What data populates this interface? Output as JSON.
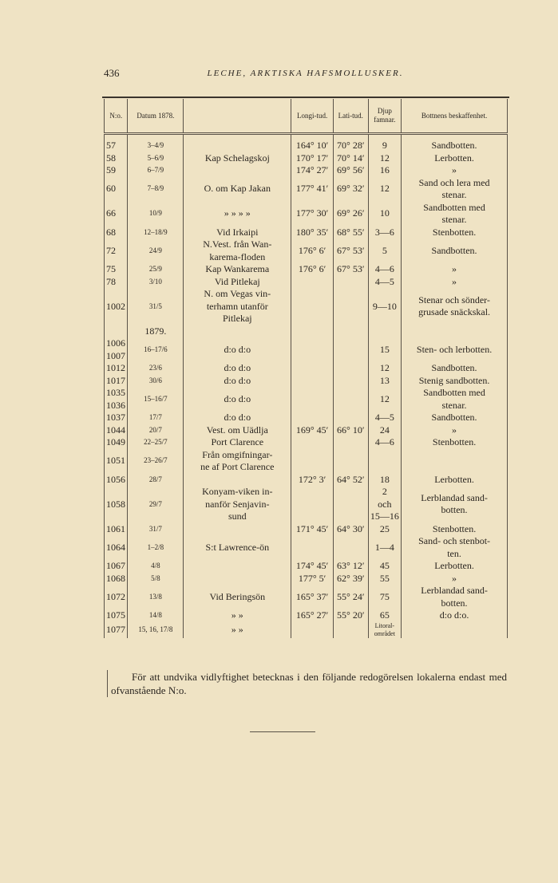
{
  "header": {
    "page_number": "436",
    "running_title": "LECHE, ARKTISKA HAFSMOLLUSKER."
  },
  "table": {
    "columns": [
      "N:o.",
      "Datum 1878.",
      "",
      "Longi-tud.",
      "Lati-tud.",
      "Djup famnar.",
      "Bottnens beskaffenhet."
    ],
    "rows": [
      {
        "no": [
          "57"
        ],
        "date": "3–4/9",
        "loc": [
          ""
        ],
        "long": "164° 10′",
        "lat": "70° 28′",
        "depth": [
          "9"
        ],
        "bottom": [
          "Sandbotten."
        ]
      },
      {
        "no": [
          "58"
        ],
        "date": "5–6/9",
        "loc": [
          "Kap Schelagskoj"
        ],
        "long": "170° 17′",
        "lat": "70° 14′",
        "depth": [
          "12"
        ],
        "bottom": [
          "Lerbotten."
        ]
      },
      {
        "no": [
          "59"
        ],
        "date": "6–7/9",
        "loc": [
          ""
        ],
        "long": "174° 27′",
        "lat": "69° 56′",
        "depth": [
          "16"
        ],
        "bottom": [
          "»"
        ]
      },
      {
        "no": [
          "60"
        ],
        "date": "7–8/9",
        "loc": [
          "O. om Kap Jakan"
        ],
        "long": "177° 41′",
        "lat": "69° 32′",
        "depth": [
          "12"
        ],
        "bottom": [
          "Sand och lera med",
          "stenar."
        ]
      },
      {
        "no": [
          "66"
        ],
        "date": "10/9",
        "loc": [
          "»   »   »   »"
        ],
        "long": "177° 30′",
        "lat": "69° 26′",
        "depth": [
          "10"
        ],
        "bottom": [
          "Sandbotten med",
          "stenar."
        ]
      },
      {
        "no": [
          "68"
        ],
        "date": "12–18/9",
        "loc": [
          "Vid Irkaipi"
        ],
        "long": "180° 35′",
        "lat": "68° 55′",
        "depth": [
          "3—6"
        ],
        "bottom": [
          "Stenbotten."
        ]
      },
      {
        "no": [
          "72"
        ],
        "date": "24/9",
        "loc": [
          "N.Vest. från Wan-",
          "karema-floden"
        ],
        "long": "176° 6′",
        "lat": "67° 53′",
        "depth": [
          "5"
        ],
        "bottom": [
          "Sandbotten."
        ]
      },
      {
        "no": [
          "75"
        ],
        "date": "25/9",
        "loc": [
          "Kap Wankarema"
        ],
        "long": "176° 6′",
        "lat": "67° 53′",
        "depth": [
          "4—6"
        ],
        "bottom": [
          "»"
        ]
      },
      {
        "no": [
          "78"
        ],
        "date": "3/10",
        "loc": [
          "Vid Pitlekaj"
        ],
        "long": "",
        "lat": "",
        "depth": [
          "4—5"
        ],
        "bottom": [
          "»"
        ]
      },
      {
        "no": [
          "1002"
        ],
        "date": "31/5",
        "loc": [
          "N. om Vegas vin-",
          "terhamn utanför",
          "Pitlekaj"
        ],
        "long": "",
        "lat": "",
        "depth": [
          "9—10"
        ],
        "bottom": [
          "Stenar och sönder-",
          "grusade snäckskal."
        ]
      },
      {
        "no": [
          ""
        ],
        "date": "1879.",
        "loc": [
          ""
        ],
        "long": "",
        "lat": "",
        "depth": [
          ""
        ],
        "bottom": [
          ""
        ]
      },
      {
        "no": [
          "1006",
          "1007"
        ],
        "date": "16–17/6",
        "loc": [
          "d:o    d:o"
        ],
        "long": "",
        "lat": "",
        "depth": [
          "15"
        ],
        "bottom": [
          "Sten- och lerbotten."
        ]
      },
      {
        "no": [
          "1012"
        ],
        "date": "23/6",
        "loc": [
          "d:o    d:o"
        ],
        "long": "",
        "lat": "",
        "depth": [
          "12"
        ],
        "bottom": [
          "Sandbotten."
        ]
      },
      {
        "no": [
          "1017"
        ],
        "date": "30/6",
        "loc": [
          "d:o    d:o"
        ],
        "long": "",
        "lat": "",
        "depth": [
          "13"
        ],
        "bottom": [
          "Stenig sandbotten."
        ]
      },
      {
        "no": [
          "1035",
          "1036"
        ],
        "date": "15–16/7",
        "loc": [
          "d:o    d:o"
        ],
        "long": "",
        "lat": "",
        "depth": [
          "12"
        ],
        "bottom": [
          "Sandbotten med",
          "stenar."
        ]
      },
      {
        "no": [
          "1037"
        ],
        "date": "17/7",
        "loc": [
          "d:o    d:o"
        ],
        "long": "",
        "lat": "",
        "depth": [
          "4—5"
        ],
        "bottom": [
          "Sandbotten."
        ]
      },
      {
        "no": [
          "1044"
        ],
        "date": "20/7",
        "loc": [
          "Vest. om Uädlja"
        ],
        "long": "169° 45′",
        "lat": "66° 10′",
        "depth": [
          "24"
        ],
        "bottom": [
          "»"
        ]
      },
      {
        "no": [
          "1049"
        ],
        "date": "22–25/7",
        "loc": [
          "Port Clarence"
        ],
        "long": "",
        "lat": "",
        "depth": [
          "4—6"
        ],
        "bottom": [
          "Stenbotten."
        ]
      },
      {
        "no": [
          "1051"
        ],
        "date": "23–26/7",
        "loc": [
          "Från omgifningar-",
          "ne af Port Clarence"
        ],
        "long": "",
        "lat": "",
        "depth": [
          ""
        ],
        "bottom": [
          ""
        ]
      },
      {
        "no": [
          "1056"
        ],
        "date": "28/7",
        "loc": [
          ""
        ],
        "long": "172° 3′",
        "lat": "64° 52′",
        "depth": [
          "18"
        ],
        "bottom": [
          "Lerbotten."
        ]
      },
      {
        "no": [
          "1058"
        ],
        "date": "29/7",
        "loc": [
          "Konyam-viken in-",
          "nanför Senjavin-",
          "sund"
        ],
        "long": "",
        "lat": "",
        "depth": [
          "2",
          "och",
          "15—16"
        ],
        "bottom": [
          "Lerblandad sand-",
          "botten."
        ]
      },
      {
        "no": [
          "1061"
        ],
        "date": "31/7",
        "loc": [
          ""
        ],
        "long": "171° 45′",
        "lat": "64° 30′",
        "depth": [
          "25"
        ],
        "bottom": [
          "Stenbotten."
        ]
      },
      {
        "no": [
          "1064"
        ],
        "date": "1–2/8",
        "loc": [
          "S:t Lawrence-ön"
        ],
        "long": "",
        "lat": "",
        "depth": [
          "1—4"
        ],
        "bottom": [
          "Sand- och stenbot-",
          "ten."
        ]
      },
      {
        "no": [
          "1067"
        ],
        "date": "4/8",
        "loc": [
          ""
        ],
        "long": "174° 45′",
        "lat": "63° 12′",
        "depth": [
          "45"
        ],
        "bottom": [
          "Lerbotten."
        ]
      },
      {
        "no": [
          "1068"
        ],
        "date": "5/8",
        "loc": [
          ""
        ],
        "long": "177° 5′",
        "lat": "62° 39′",
        "depth": [
          "55"
        ],
        "bottom": [
          "»"
        ]
      },
      {
        "no": [
          "1072"
        ],
        "date": "13/8",
        "loc": [
          "Vid Beringsön"
        ],
        "long": "165° 37′",
        "lat": "55° 24′",
        "depth": [
          "75"
        ],
        "bottom": [
          "Lerblandad sand-",
          "botten."
        ]
      },
      {
        "no": [
          "1075"
        ],
        "date": "14/8",
        "loc": [
          "»        »"
        ],
        "long": "165° 27′",
        "lat": "55° 20′",
        "depth": [
          "65"
        ],
        "bottom": [
          "d:o    d:o."
        ]
      },
      {
        "no": [
          "1077"
        ],
        "date": "15, 16, 17/8",
        "loc": [
          "»        »"
        ],
        "long": "",
        "lat": "",
        "depth": [
          "Litoral-",
          "området"
        ],
        "bottom": [
          ""
        ]
      }
    ]
  },
  "note": "För att undvika vidlyftighet betecknas i den följande redogörelsen lokalerna endast med ofvanstående N:o."
}
